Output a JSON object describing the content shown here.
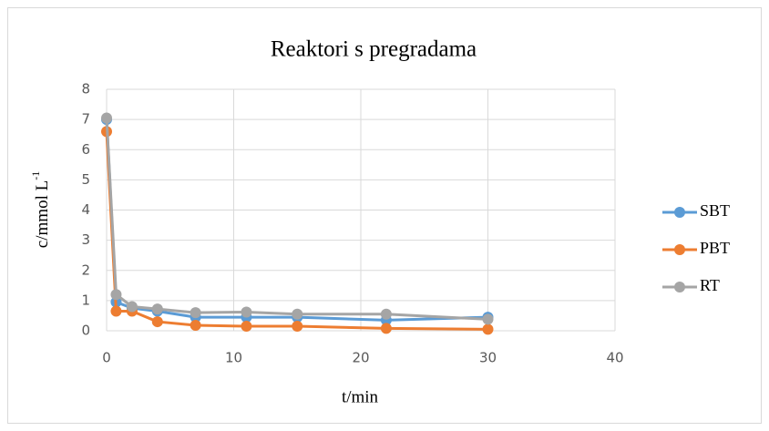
{
  "chart_data": {
    "type": "line",
    "title": "Reaktori s pregradama",
    "x_label": "t/min",
    "y_label": "c/mmol L",
    "y_label_sup": "-1",
    "x": [
      0,
      0.75,
      2,
      4,
      7,
      11,
      15,
      22,
      30
    ],
    "series": [
      {
        "name": "SBT",
        "color": "#5b9bd5",
        "values": [
          7.0,
          0.95,
          0.75,
          0.65,
          0.45,
          0.45,
          0.45,
          0.35,
          0.45
        ]
      },
      {
        "name": "PBT",
        "color": "#ed7d31",
        "values": [
          6.6,
          0.65,
          0.65,
          0.3,
          0.18,
          0.15,
          0.15,
          0.08,
          0.05
        ]
      },
      {
        "name": "RT",
        "color": "#a5a5a5",
        "values": [
          7.05,
          1.2,
          0.8,
          0.72,
          0.6,
          0.62,
          0.55,
          0.55,
          0.38
        ]
      }
    ],
    "xlim": [
      0,
      40
    ],
    "xticks": [
      0,
      10,
      20,
      30,
      40
    ],
    "ylim": [
      0,
      8
    ],
    "yticks": [
      0,
      1,
      2,
      3,
      4,
      5,
      6,
      7,
      8
    ],
    "grid": true,
    "legend": "right"
  }
}
